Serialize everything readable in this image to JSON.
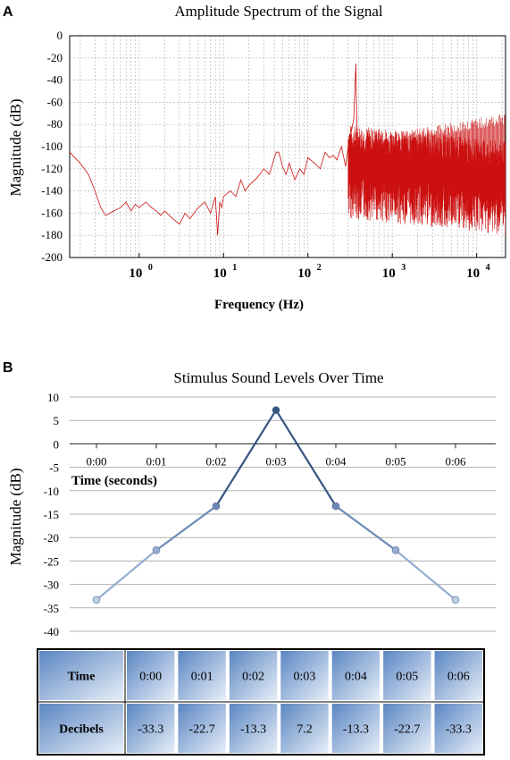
{
  "panels": {
    "a_letter": "A",
    "b_letter": "B"
  },
  "chart_data": [
    {
      "type": "line",
      "title": "Amplitude Spectrum of the Signal",
      "xlabel": "Frequency (Hz)",
      "ylabel": "Magnitude (dB)",
      "xscale": "log",
      "xlim": [
        0.15,
        22000
      ],
      "ylim": [
        -200,
        0
      ],
      "grid": true,
      "x_ticks": [
        {
          "base": "10",
          "exp": "0",
          "value": 1
        },
        {
          "base": "10",
          "exp": "1",
          "value": 10
        },
        {
          "base": "10",
          "exp": "2",
          "value": 100
        },
        {
          "base": "10",
          "exp": "3",
          "value": 1000
        },
        {
          "base": "10",
          "exp": "4",
          "value": 10000
        }
      ],
      "y_ticks": [
        "0",
        "-20",
        "-40",
        "-60",
        "-80",
        "-100",
        "-120",
        "-140",
        "-160",
        "-180",
        "-200"
      ],
      "y_tick_values": [
        0,
        -20,
        -40,
        -60,
        -80,
        -100,
        -120,
        -140,
        -160,
        -180,
        -200
      ],
      "line_color": "#cc1010",
      "series": [
        {
          "x": [
            0.15,
            0.2,
            0.25,
            0.3,
            0.35,
            0.4,
            0.45,
            0.5,
            0.6,
            0.7,
            0.8,
            0.9,
            1.0,
            1.2,
            1.4,
            1.6,
            1.8,
            2.0,
            2.5,
            3,
            3.5,
            4,
            5,
            6,
            7,
            8,
            8.5,
            9,
            9.5,
            10,
            12,
            14,
            16,
            18,
            20,
            25,
            30,
            35,
            40,
            42,
            45,
            48,
            50,
            55,
            60,
            70,
            80,
            90,
            100,
            120,
            140,
            160,
            180,
            200,
            220,
            250,
            280,
            300,
            320,
            350,
            370,
            380,
            400,
            450,
            500,
            600,
            700,
            800,
            900,
            1000,
            1200,
            1500,
            2000,
            3000,
            5000,
            8000,
            12000,
            16000,
            20000,
            22000
          ],
          "y": [
            -105,
            -115,
            -125,
            -140,
            -155,
            -162,
            -160,
            -158,
            -155,
            -150,
            -158,
            -152,
            -155,
            -150,
            -155,
            -158,
            -162,
            -158,
            -165,
            -170,
            -160,
            -165,
            -155,
            -150,
            -160,
            -145,
            -180,
            -150,
            -155,
            -145,
            -140,
            -145,
            -130,
            -140,
            -135,
            -128,
            -120,
            -125,
            -110,
            -105,
            -105,
            -112,
            -118,
            -125,
            -115,
            -130,
            -120,
            -125,
            -110,
            -115,
            -120,
            -105,
            -110,
            -108,
            -112,
            -100,
            -118,
            -100,
            -90,
            -75,
            -25,
            -80,
            -100,
            -110,
            -105,
            -115,
            -110,
            -105,
            -110,
            -108,
            -115,
            -120,
            -125,
            -130,
            -135,
            -130,
            -128,
            -132,
            -125,
            -130
          ]
        }
      ]
    },
    {
      "type": "line",
      "title": "Stimulus Sound Levels Over Time",
      "xlabel": "Time (seconds)",
      "ylabel": "Magnitude (dB)",
      "ylim": [
        -40,
        10
      ],
      "grid": true,
      "categories": [
        "0:00",
        "0:01",
        "0:02",
        "0:03",
        "0:04",
        "0:05",
        "0:06"
      ],
      "y_ticks": [
        "10",
        "5",
        "0",
        "-5",
        "-10",
        "-15",
        "-20",
        "-25",
        "-30",
        "-35",
        "-40"
      ],
      "y_tick_values": [
        10,
        5,
        0,
        -5,
        -10,
        -15,
        -20,
        -25,
        -30,
        -35,
        -40
      ],
      "series": [
        {
          "values": [
            -33.3,
            -22.7,
            -13.3,
            7.2,
            -13.3,
            -22.7,
            -33.3
          ]
        }
      ],
      "point_colors": [
        "#c0cde2",
        "#95acd0",
        "#6a89b9",
        "#34557f",
        "#6a89b9",
        "#95acd0",
        "#c0cde2"
      ]
    }
  ],
  "table": {
    "rows": [
      {
        "header": "Time",
        "cells": [
          "0:00",
          "0:01",
          "0:02",
          "0:03",
          "0:04",
          "0:05",
          "0:06"
        ]
      },
      {
        "header": "Decibels",
        "cells": [
          "-33.3",
          "-22.7",
          "-13.3",
          "7.2",
          "-13.3",
          "-22.7",
          "-33.3"
        ]
      }
    ]
  }
}
